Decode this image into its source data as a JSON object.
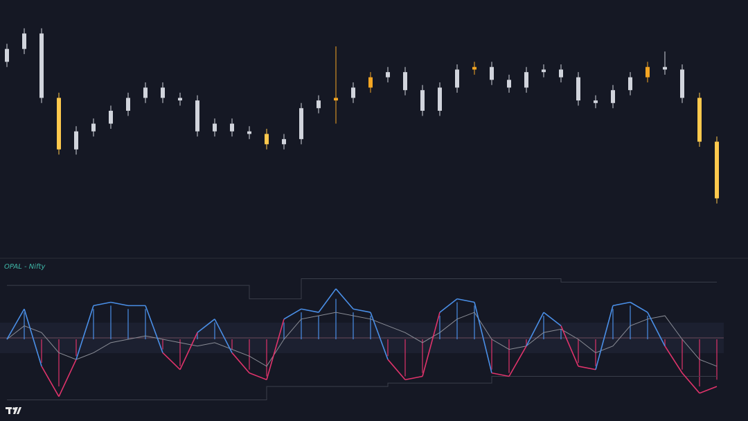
{
  "chart_data": {
    "type": "candlestick",
    "ylim": [
      0,
      100
    ],
    "candles": {
      "open": [
        76,
        81,
        87,
        62,
        42,
        49,
        52,
        57,
        62,
        66,
        62,
        61,
        49,
        52,
        49,
        48,
        44,
        46,
        58,
        61,
        62,
        66,
        70,
        72,
        65,
        57,
        66,
        73,
        74,
        69,
        66,
        72,
        73,
        70,
        61,
        60,
        65,
        70,
        74,
        73,
        62,
        45
      ],
      "high": [
        83,
        89,
        89,
        64,
        51,
        54,
        59,
        64,
        68,
        68,
        64,
        63,
        54,
        54,
        51,
        50,
        48,
        60,
        63,
        82,
        68,
        72,
        74,
        74,
        67,
        68,
        75,
        76,
        76,
        71,
        74,
        75,
        75,
        72,
        63,
        67,
        72,
        76,
        80,
        75,
        64,
        47
      ],
      "low": [
        74,
        79,
        60,
        40,
        40,
        47,
        50,
        55,
        60,
        60,
        59,
        47,
        47,
        47,
        46,
        42,
        42,
        44,
        56,
        52,
        60,
        64,
        68,
        63,
        55,
        55,
        64,
        71,
        67,
        64,
        64,
        70,
        68,
        59,
        58,
        58,
        63,
        68,
        71,
        60,
        43,
        21
      ],
      "close": [
        81,
        87,
        62,
        42,
        49,
        52,
        57,
        62,
        66,
        62,
        61,
        49,
        52,
        49,
        48,
        44,
        46,
        58,
        61,
        62,
        66,
        70,
        72,
        65,
        57,
        66,
        73,
        74,
        69,
        66,
        72,
        73,
        70,
        61,
        60,
        65,
        70,
        74,
        73,
        62,
        45,
        23
      ],
      "colors": [
        "#d1d4dc",
        "#d1d4dc",
        "#d1d4dc",
        "#ffc94d",
        "#d1d4dc",
        "#d1d4dc",
        "#d1d4dc",
        "#d1d4dc",
        "#d1d4dc",
        "#d1d4dc",
        "#d1d4dc",
        "#d1d4dc",
        "#d1d4dc",
        "#d1d4dc",
        "#d1d4dc",
        "#ffc94d",
        "#d1d4dc",
        "#d1d4dc",
        "#d1d4dc",
        "#f5a623",
        "#d1d4dc",
        "#f5a623",
        "#d1d4dc",
        "#d1d4dc",
        "#d1d4dc",
        "#d1d4dc",
        "#d1d4dc",
        "#f5a623",
        "#d1d4dc",
        "#d1d4dc",
        "#d1d4dc",
        "#d1d4dc",
        "#d1d4dc",
        "#d1d4dc",
        "#d1d4dc",
        "#d1d4dc",
        "#d1d4dc",
        "#f5a623",
        "#d1d4dc",
        "#d1d4dc",
        "#ffc94d",
        "#ffc94d"
      ]
    },
    "indicator": {
      "label": "OPAL - Nifty",
      "ylim": [
        -110,
        110
      ],
      "pos_color": "#4a8fe7",
      "neg_color": "#e0336b",
      "oscillator": [
        0,
        45,
        -40,
        -85,
        -30,
        50,
        55,
        50,
        50,
        -20,
        -45,
        10,
        30,
        -20,
        -50,
        -60,
        30,
        45,
        40,
        75,
        45,
        40,
        -30,
        -60,
        -55,
        40,
        60,
        55,
        -50,
        -55,
        -10,
        40,
        20,
        -40,
        -45,
        50,
        55,
        40,
        -10,
        -50,
        -80,
        -70
      ],
      "signal": {
        "color": "#8a8d96",
        "values": [
          0,
          20,
          10,
          -20,
          -30,
          -20,
          -5,
          0,
          5,
          0,
          -5,
          -10,
          -5,
          -15,
          -25,
          -40,
          0,
          30,
          35,
          40,
          35,
          30,
          20,
          10,
          -5,
          10,
          30,
          40,
          0,
          -15,
          -10,
          10,
          15,
          0,
          -20,
          -10,
          20,
          30,
          35,
          0,
          -30,
          -40
        ]
      },
      "histogram": [
        0,
        40,
        -35,
        -70,
        -25,
        45,
        50,
        45,
        45,
        -15,
        -40,
        10,
        25,
        -15,
        -45,
        -55,
        25,
        40,
        35,
        60,
        40,
        35,
        -25,
        -55,
        -50,
        35,
        55,
        50,
        -45,
        -50,
        -10,
        35,
        15,
        -35,
        -40,
        45,
        50,
        35,
        -10,
        -45,
        -70,
        -60
      ],
      "upper_band": {
        "color": "#3a3e4a",
        "values": [
          80,
          80,
          80,
          80,
          80,
          80,
          80,
          80,
          80,
          80,
          80,
          80,
          80,
          80,
          60,
          60,
          60,
          90,
          90,
          90,
          90,
          90,
          90,
          90,
          90,
          90,
          90,
          90,
          90,
          90,
          90,
          90,
          85,
          85,
          85,
          85,
          85,
          85,
          85,
          85,
          85,
          85
        ]
      },
      "lower_band": {
        "color": "#3a3e4a",
        "values": [
          -90,
          -90,
          -90,
          -90,
          -90,
          -90,
          -90,
          -90,
          -90,
          -90,
          -90,
          -90,
          -90,
          -90,
          -90,
          -70,
          -70,
          -70,
          -70,
          -70,
          -70,
          -70,
          -65,
          -65,
          -65,
          -65,
          -65,
          -65,
          -55,
          -55,
          -55,
          -55,
          -55,
          -55,
          -55,
          -55,
          -55,
          -55,
          -55,
          -55,
          -55,
          -55
        ]
      }
    }
  }
}
